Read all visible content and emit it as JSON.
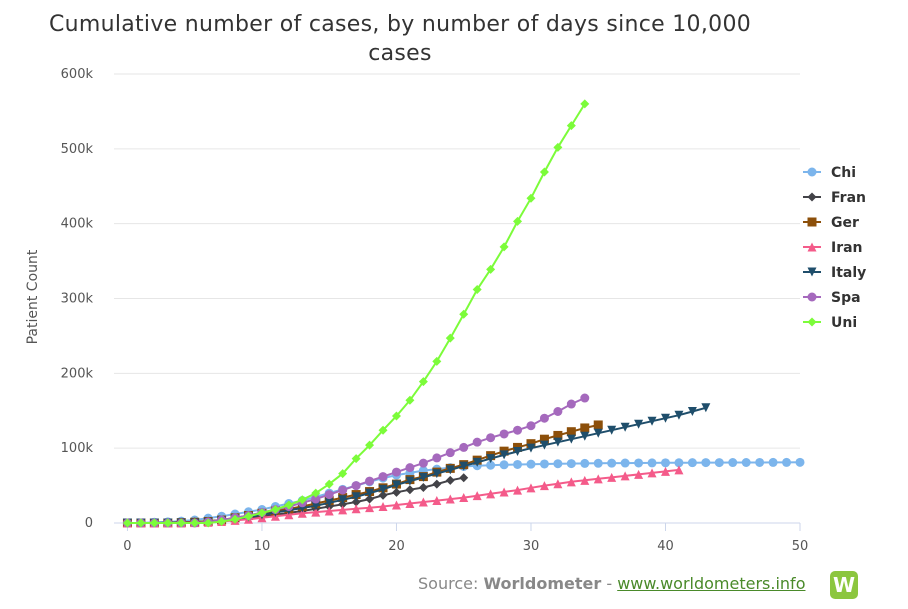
{
  "chart_data": {
    "type": "line",
    "title": "Cumulative number of cases, by number of days since 10,000 cases",
    "title_lines": [
      "Cumulative number of cases, by number of days since 10,000",
      "cases"
    ],
    "xlabel": "",
    "ylabel": "Patient Count",
    "xlim": [
      -1,
      50
    ],
    "ylim": [
      0,
      600000
    ],
    "x_ticks": [
      0,
      10,
      20,
      30,
      40,
      50
    ],
    "x_tick_labels": [
      "0",
      "10",
      "20",
      "30",
      "40",
      "50"
    ],
    "y_ticks": [
      0,
      100000,
      200000,
      300000,
      400000,
      500000,
      600000
    ],
    "y_tick_labels": [
      "0",
      "100k",
      "200k",
      "300k",
      "400k",
      "500k",
      "600k"
    ],
    "grid": "horizontal",
    "legend_position": "right (clipped)",
    "series": [
      {
        "name": "Chi",
        "color": "#7cb5ec",
        "marker": "circle",
        "values": [
          0,
          0,
          1000,
          1500,
          2500,
          4000,
          6500,
          9000,
          12000,
          15000,
          18000,
          22000,
          26000,
          30000,
          35000,
          40000,
          45000,
          50000,
          55000,
          60000,
          64000,
          67000,
          70000,
          72000,
          74000,
          75500,
          76500,
          77200,
          77800,
          78200,
          78600,
          78900,
          79200,
          79400,
          79600,
          79800,
          80000,
          80100,
          80200,
          80300,
          80400,
          80500,
          80600,
          80700,
          80750,
          80800,
          80850,
          80900,
          80950,
          81000,
          81050
        ]
      },
      {
        "name": "Fran",
        "color": "#434348",
        "marker": "diamond",
        "values": [
          0,
          0,
          0,
          500,
          1000,
          1500,
          2500,
          4000,
          5500,
          7000,
          9000,
          11000,
          13500,
          16000,
          19000,
          22000,
          25000,
          28000,
          32000,
          37000,
          41000,
          44500,
          47500,
          52000,
          57000,
          60500
        ]
      },
      {
        "name": "Ger",
        "color": "#8c4f0a",
        "marker": "square",
        "values": [
          0,
          0,
          0,
          0,
          500,
          1000,
          2000,
          4000,
          7000,
          10000,
          13000,
          16000,
          19000,
          22000,
          26000,
          30000,
          34000,
          38000,
          42000,
          47000,
          52000,
          58000,
          62000,
          68000,
          73000,
          78000,
          84000,
          90000,
          96000,
          101000,
          106000,
          112000,
          117000,
          122000,
          127000,
          131000
        ]
      },
      {
        "name": "Iran",
        "color": "#f45b8a",
        "marker": "triangle",
        "values": [
          0,
          0,
          0,
          0,
          0,
          500,
          1000,
          2000,
          3500,
          5000,
          7000,
          9000,
          11000,
          13000,
          14500,
          16000,
          17500,
          19000,
          20500,
          22000,
          24000,
          26000,
          28000,
          30000,
          32000,
          34000,
          36500,
          39000,
          41500,
          44000,
          47000,
          50000,
          52500,
          55000,
          57000,
          59000,
          61000,
          63000,
          65000,
          67000,
          69000,
          71000
        ]
      },
      {
        "name": "Italy",
        "color": "#1f4e6b",
        "marker": "triangle-down",
        "values": [
          0,
          0,
          0,
          0,
          0,
          0,
          1000,
          3000,
          5500,
          8000,
          11000,
          14000,
          17000,
          20000,
          23000,
          27000,
          31000,
          35000,
          40000,
          45000,
          51000,
          56000,
          61000,
          66000,
          71000,
          76000,
          81000,
          86000,
          91000,
          95500,
          100000,
          104000,
          108000,
          112000,
          116000,
          120000,
          124000,
          128000,
          132000,
          136000,
          140000,
          144000,
          149000,
          154000
        ]
      },
      {
        "name": "Spa",
        "color": "#a569bd",
        "marker": "circle",
        "values": [
          0,
          0,
          0,
          0,
          0,
          0,
          1500,
          4000,
          7000,
          10000,
          14000,
          18000,
          22000,
          27000,
          32000,
          38000,
          44000,
          50000,
          56000,
          62000,
          68000,
          74000,
          80000,
          87000,
          94000,
          101000,
          108000,
          114000,
          119000,
          124000,
          130000,
          140000,
          149000,
          159000,
          167000
        ]
      },
      {
        "name": "Uni",
        "color": "#7cfc3a",
        "marker": "diamond",
        "values": [
          0,
          0,
          0,
          0,
          0,
          0,
          0,
          2000,
          5000,
          9000,
          13500,
          18000,
          24000,
          31000,
          40000,
          52000,
          66000,
          86000,
          104000,
          124000,
          143000,
          164000,
          189000,
          216000,
          247000,
          279000,
          312000,
          339000,
          369000,
          403000,
          434000,
          469000,
          502000,
          531000,
          560000
        ]
      }
    ]
  },
  "source": {
    "prefix": "Source: ",
    "name": "Worldometer",
    "separator": " - ",
    "link": "www.worldometers.info",
    "logo_letter": "W"
  }
}
